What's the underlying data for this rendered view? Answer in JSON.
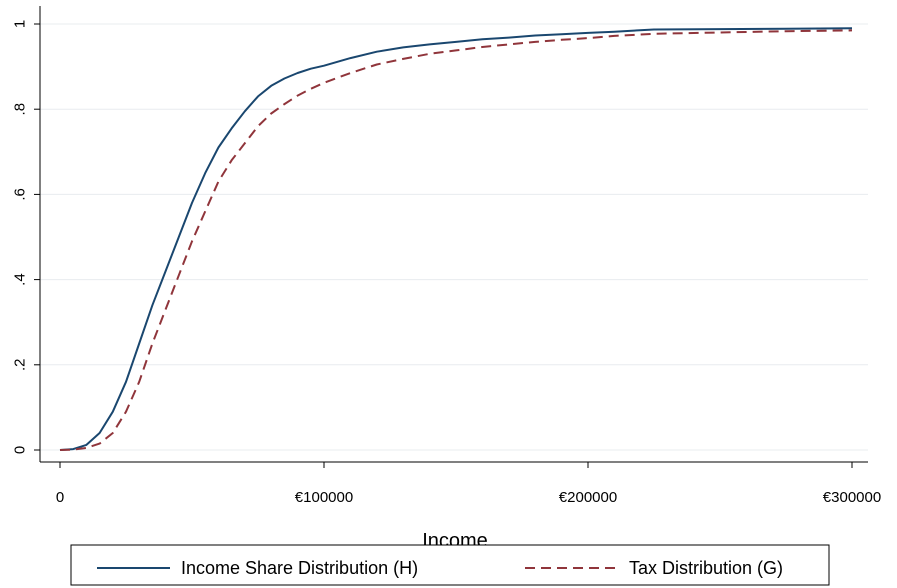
{
  "chart_data": {
    "type": "line",
    "xlabel": "Income",
    "ylabel": "",
    "xlim": [
      0,
      300000
    ],
    "ylim": [
      0,
      1
    ],
    "x_ticks": [
      {
        "value": 0,
        "label": "0"
      },
      {
        "value": 100000,
        "label": "€100000"
      },
      {
        "value": 200000,
        "label": "€200000"
      },
      {
        "value": 300000,
        "label": "€300000"
      }
    ],
    "y_ticks": [
      {
        "value": 0,
        "label": "0"
      },
      {
        "value": 0.2,
        "label": ".2"
      },
      {
        "value": 0.4,
        "label": ".4"
      },
      {
        "value": 0.6,
        "label": ".6"
      },
      {
        "value": 0.8,
        "label": ".8"
      },
      {
        "value": 1,
        "label": "1"
      }
    ],
    "grid": "horizontal",
    "legend_position": "bottom",
    "series": [
      {
        "name": "Income Share Distribution (H)",
        "color": "#1a476f",
        "dash": "solid",
        "x": [
          0,
          5000,
          10000,
          15000,
          20000,
          25000,
          30000,
          35000,
          40000,
          45000,
          50000,
          55000,
          60000,
          65000,
          70000,
          75000,
          80000,
          85000,
          90000,
          95000,
          100000,
          110000,
          120000,
          130000,
          140000,
          150000,
          160000,
          170000,
          180000,
          190000,
          200000,
          210000,
          225000,
          250000,
          275000,
          300000
        ],
        "y": [
          0,
          0.002,
          0.012,
          0.04,
          0.09,
          0.16,
          0.25,
          0.34,
          0.42,
          0.5,
          0.58,
          0.65,
          0.71,
          0.755,
          0.795,
          0.83,
          0.855,
          0.872,
          0.885,
          0.895,
          0.902,
          0.92,
          0.935,
          0.945,
          0.952,
          0.958,
          0.964,
          0.968,
          0.973,
          0.976,
          0.979,
          0.982,
          0.987,
          0.988,
          0.989,
          0.99
        ]
      },
      {
        "name": "Tax Distribution (G)",
        "color": "#90353b",
        "dash": "dashed",
        "x": [
          0,
          5000,
          10000,
          15000,
          20000,
          25000,
          30000,
          35000,
          40000,
          45000,
          50000,
          55000,
          60000,
          65000,
          70000,
          75000,
          80000,
          85000,
          90000,
          95000,
          100000,
          110000,
          120000,
          130000,
          140000,
          150000,
          160000,
          170000,
          180000,
          190000,
          200000,
          210000,
          225000,
          250000,
          275000,
          300000
        ],
        "y": [
          0,
          0.001,
          0.005,
          0.015,
          0.04,
          0.09,
          0.16,
          0.25,
          0.33,
          0.41,
          0.49,
          0.56,
          0.63,
          0.68,
          0.72,
          0.76,
          0.79,
          0.812,
          0.832,
          0.848,
          0.862,
          0.885,
          0.905,
          0.918,
          0.93,
          0.938,
          0.946,
          0.952,
          0.958,
          0.963,
          0.967,
          0.972,
          0.977,
          0.98,
          0.983,
          0.985
        ]
      }
    ]
  }
}
